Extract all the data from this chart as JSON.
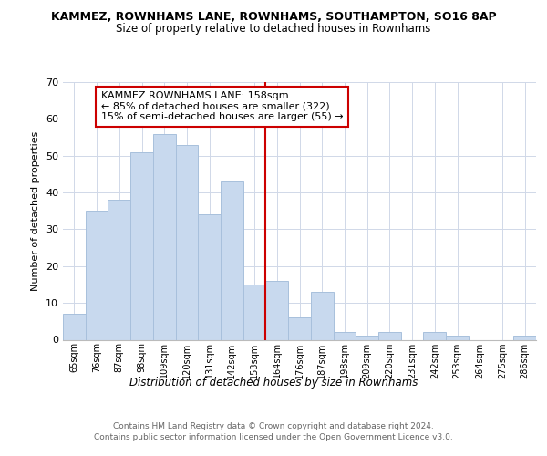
{
  "title": "KAMMEZ, ROWNHAMS LANE, ROWNHAMS, SOUTHAMPTON, SO16 8AP",
  "subtitle": "Size of property relative to detached houses in Rownhams",
  "xlabel": "Distribution of detached houses by size in Rownhams",
  "ylabel": "Number of detached properties",
  "bar_labels": [
    "65sqm",
    "76sqm",
    "87sqm",
    "98sqm",
    "109sqm",
    "120sqm",
    "131sqm",
    "142sqm",
    "153sqm",
    "164sqm",
    "176sqm",
    "187sqm",
    "198sqm",
    "209sqm",
    "220sqm",
    "231sqm",
    "242sqm",
    "253sqm",
    "264sqm",
    "275sqm",
    "286sqm"
  ],
  "bar_values": [
    7,
    35,
    38,
    51,
    56,
    53,
    34,
    43,
    15,
    16,
    6,
    13,
    2,
    1,
    2,
    0,
    2,
    1,
    0,
    0,
    1
  ],
  "bar_color": "#c8d9ee",
  "bar_edge_color": "#a8c0dc",
  "grid_color": "#d0d8e8",
  "vline_x": 8.5,
  "vline_color": "#cc0000",
  "annotation_title": "KAMMEZ ROWNHAMS LANE: 158sqm",
  "annotation_line1": "← 85% of detached houses are smaller (322)",
  "annotation_line2": "15% of semi-detached houses are larger (55) →",
  "annotation_box_color": "#ffffff",
  "annotation_box_edge": "#cc0000",
  "ylim": [
    0,
    70
  ],
  "yticks": [
    0,
    10,
    20,
    30,
    40,
    50,
    60,
    70
  ],
  "footer_line1": "Contains HM Land Registry data © Crown copyright and database right 2024.",
  "footer_line2": "Contains public sector information licensed under the Open Government Licence v3.0.",
  "bg_color": "#ffffff"
}
